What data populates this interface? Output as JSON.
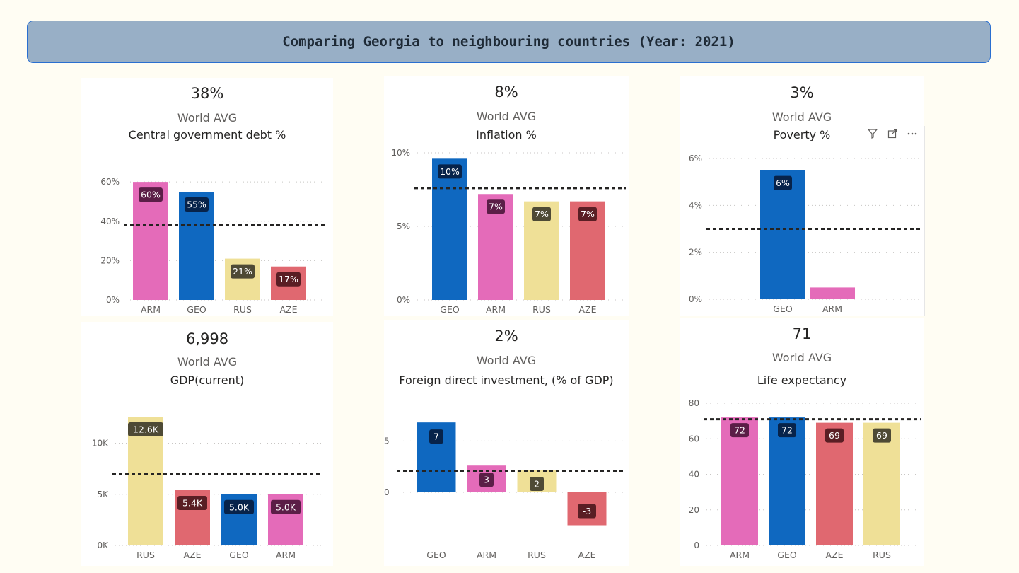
{
  "banner": {
    "title": "Comparing Georgia to neighbouring countries (Year: 2021)"
  },
  "kpis": [
    {
      "value": "38%",
      "label": "World AVG"
    },
    {
      "value": "8%",
      "label": "World AVG"
    },
    {
      "value": "3%",
      "label": "World AVG"
    },
    {
      "value": "6,998",
      "label": "World AVG"
    },
    {
      "value": "2%",
      "label": "World AVG"
    },
    {
      "value": "71",
      "label": "World AVG"
    }
  ],
  "colors": {
    "ARM": "#e46bb9",
    "GEO": "#0f68c0",
    "RUS": "#efe097",
    "AZE": "#e06870"
  },
  "visual_header_icons": [
    "filter-icon",
    "focus-mode-icon",
    "more-options-icon"
  ],
  "chart_data": [
    {
      "type": "bar",
      "title": "Central government debt %",
      "categories": [
        "ARM",
        "GEO",
        "RUS",
        "AZE"
      ],
      "values": [
        60,
        55,
        21,
        17
      ],
      "data_labels": [
        "60%",
        "55%",
        "21%",
        "17%"
      ],
      "yticks": [
        0,
        20,
        40,
        60
      ],
      "ytick_labels": [
        "0%",
        "20%",
        "40%",
        "60%"
      ],
      "ylim": [
        0,
        64
      ],
      "reference_line": 38
    },
    {
      "type": "bar",
      "title": "Inflation %",
      "categories": [
        "GEO",
        "ARM",
        "RUS",
        "AZE"
      ],
      "values": [
        9.6,
        7.2,
        6.7,
        6.7
      ],
      "data_labels": [
        "10%",
        "7%",
        "7%",
        "7%"
      ],
      "yticks": [
        0,
        5,
        10
      ],
      "ytick_labels": [
        "0%",
        "5%",
        "10%"
      ],
      "ylim": [
        0,
        10
      ],
      "reference_line": 7.6
    },
    {
      "type": "bar",
      "title": "Poverty %",
      "categories": [
        "GEO",
        "ARM"
      ],
      "values": [
        5.5,
        0.5
      ],
      "data_labels": [
        "6%",
        ""
      ],
      "yticks": [
        0,
        2,
        4,
        6
      ],
      "ytick_labels": [
        "0%",
        "2%",
        "4%",
        "6%"
      ],
      "ylim": [
        0,
        6
      ],
      "reference_line": 3
    },
    {
      "type": "bar",
      "title": "GDP(current)",
      "categories": [
        "RUS",
        "AZE",
        "GEO",
        "ARM"
      ],
      "values": [
        12600,
        5400,
        5000,
        5000
      ],
      "data_labels": [
        "12.6K",
        "5.4K",
        "5.0K",
        "5.0K"
      ],
      "yticks": [
        0,
        5000,
        10000
      ],
      "ytick_labels": [
        "0K",
        "5K",
        "10K"
      ],
      "ylim": [
        0,
        12600
      ],
      "reference_line": 6998
    },
    {
      "type": "bar",
      "title": "Foreign direct investment, (% of GDP)",
      "categories": [
        "GEO",
        "ARM",
        "RUS",
        "AZE"
      ],
      "values": [
        6.8,
        2.6,
        2.2,
        -3.2
      ],
      "data_labels": [
        "7",
        "3",
        "2",
        "-3"
      ],
      "yticks": [
        0,
        5
      ],
      "ytick_labels": [
        "0",
        "5"
      ],
      "ylim": [
        -4,
        7.5
      ],
      "reference_line": 2.1
    },
    {
      "type": "bar",
      "title": "Life expectancy",
      "categories": [
        "ARM",
        "GEO",
        "AZE",
        "RUS"
      ],
      "values": [
        72,
        72,
        69,
        69
      ],
      "data_labels": [
        "72",
        "72",
        "69",
        "69"
      ],
      "yticks": [
        0,
        20,
        40,
        60,
        80
      ],
      "ytick_labels": [
        "0",
        "20",
        "40",
        "60",
        "80"
      ],
      "ylim": [
        0,
        80
      ],
      "reference_line": 71
    }
  ]
}
